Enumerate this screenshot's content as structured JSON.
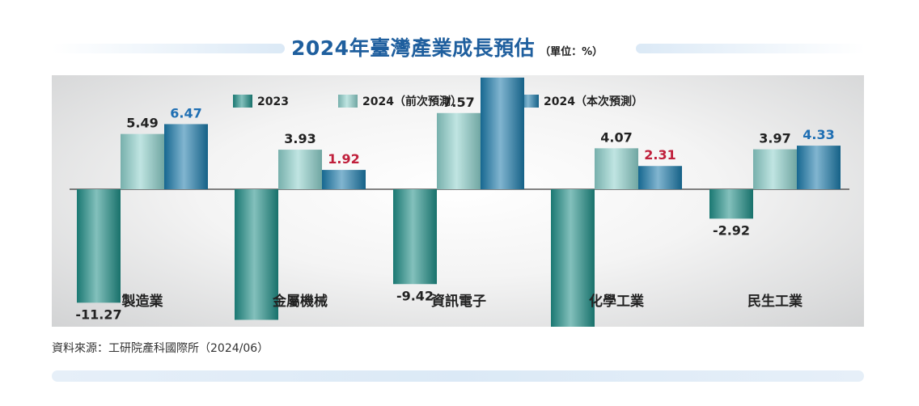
{
  "header": {
    "title": "2024年臺灣產業成長預估",
    "unit": "（單位：%）"
  },
  "footer": {
    "source": "資料來源：工研院產科國際所（2024/06）"
  },
  "colors": {
    "series_2023": "#1e8d86",
    "series_2024_prev": "#8ccfca",
    "series_2024_now": "#1a79a9",
    "label_default": "#222222",
    "label_now_positive_high": "#1f6fb3",
    "label_now_positive_low": "#c0203c"
  },
  "chart_data": {
    "type": "bar",
    "categories": [
      "製造業",
      "金屬機械",
      "資訊電子",
      "化學工業",
      "民生工業"
    ],
    "series": [
      {
        "name": "2023",
        "values": [
          -11.27,
          -12.97,
          -9.42,
          -15.87,
          -2.92
        ]
      },
      {
        "name": "2024（前次預測）",
        "values": [
          5.49,
          3.93,
          7.57,
          4.07,
          3.97
        ]
      },
      {
        "name": "2024（本次預測）",
        "values": [
          6.47,
          1.92,
          11.09,
          2.31,
          4.33
        ]
      }
    ],
    "data_labels": [
      [
        "-11.27",
        "-12.97",
        "-9.42",
        "-15.87",
        "-2.92"
      ],
      [
        "5.49",
        "3.93",
        "7.57",
        "4.07",
        "3.97"
      ],
      [
        "6.47",
        "1.92",
        "11.09",
        "2.31",
        "4.33"
      ]
    ],
    "label_colors_now": [
      "#1f6fb3",
      "#c0203c",
      "#1f6fb3",
      "#c0203c",
      "#1f6fb3"
    ],
    "legend_position": "top-center",
    "grid": false,
    "ylim": [
      -16,
      11.5
    ]
  }
}
